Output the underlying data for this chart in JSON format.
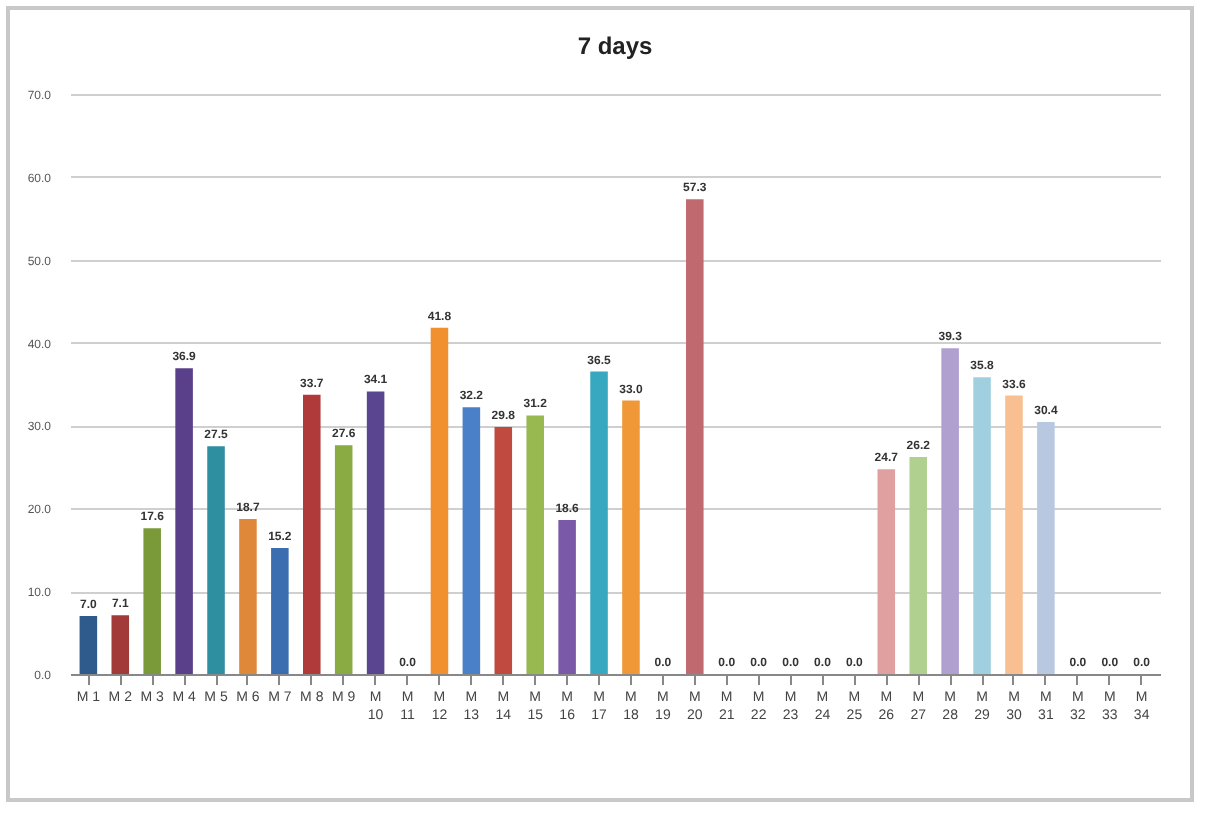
{
  "chart_data": {
    "type": "bar",
    "title": "7 days",
    "categories": [
      "M 1",
      "M 2",
      "M 3",
      "M 4",
      "M 5",
      "M 6",
      "M 7",
      "M 8",
      "M 9",
      "M 10",
      "M 11",
      "M 12",
      "M 13",
      "M 14",
      "M 15",
      "M 16",
      "M 17",
      "M 18",
      "M 19",
      "M 20",
      "M 21",
      "M 22",
      "M 23",
      "M 24",
      "M 25",
      "M 26",
      "M 27",
      "M 28",
      "M 29",
      "M 30",
      "M 31",
      "M 32",
      "M 33",
      "M 34"
    ],
    "values": [
      7.0,
      7.1,
      17.6,
      36.9,
      27.5,
      18.7,
      15.2,
      33.7,
      27.6,
      34.1,
      0.0,
      41.8,
      32.2,
      29.8,
      31.2,
      18.6,
      36.5,
      33.0,
      0.0,
      57.3,
      0.0,
      0.0,
      0.0,
      0.0,
      0.0,
      24.7,
      26.2,
      39.3,
      35.8,
      33.6,
      30.4,
      0.0,
      0.0,
      0.0
    ],
    "value_labels": [
      "7.0",
      "7.1",
      "17.6",
      "36.9",
      "27.5",
      "18.7",
      "15.2",
      "33.7",
      "27.6",
      "34.1",
      "0.0",
      "41.8",
      "32.2",
      "29.8",
      "31.2",
      "18.6",
      "36.5",
      "33.0",
      "0.0",
      "57.3",
      "0.0",
      "0.0",
      "0.0",
      "0.0",
      "0.0",
      "24.7",
      "26.2",
      "39.3",
      "35.8",
      "33.6",
      "30.4",
      "0.0",
      "0.0",
      "0.0"
    ],
    "colors": [
      "#2e5a8c",
      "#a33a3a",
      "#7a9a3a",
      "#5a3f8a",
      "#2e8fa0",
      "#e0883a",
      "#3a6eb0",
      "#b03a3a",
      "#8aaa44",
      "#5a4590",
      "#3aa0b8",
      "#f0902e",
      "#4a80c8",
      "#c04a40",
      "#98b850",
      "#7a5aa8",
      "#38a8c0",
      "#f09838",
      "#5a8ad0",
      "#c06a70",
      "#d07070",
      "#a8c870",
      "#9080c0",
      "#60b8d0",
      "#f8b070",
      "#e0a0a0",
      "#b0d090",
      "#b0a0d0",
      "#a0d0e0",
      "#f8c090",
      "#b8c8e0",
      "#e8b0b0",
      "#c8e0a8",
      "#c8c0e0"
    ],
    "ylim": [
      0,
      70
    ],
    "yticks": [
      {
        "value": 0,
        "label": "0.0"
      },
      {
        "value": 10,
        "label": "10.0"
      },
      {
        "value": 20,
        "label": "20.0"
      },
      {
        "value": 30,
        "label": "30.0"
      },
      {
        "value": 40,
        "label": "40.0"
      },
      {
        "value": 50,
        "label": "50.0"
      },
      {
        "value": 60,
        "label": "60.0"
      },
      {
        "value": 70,
        "label": "70.0"
      }
    ],
    "grid": "y"
  }
}
